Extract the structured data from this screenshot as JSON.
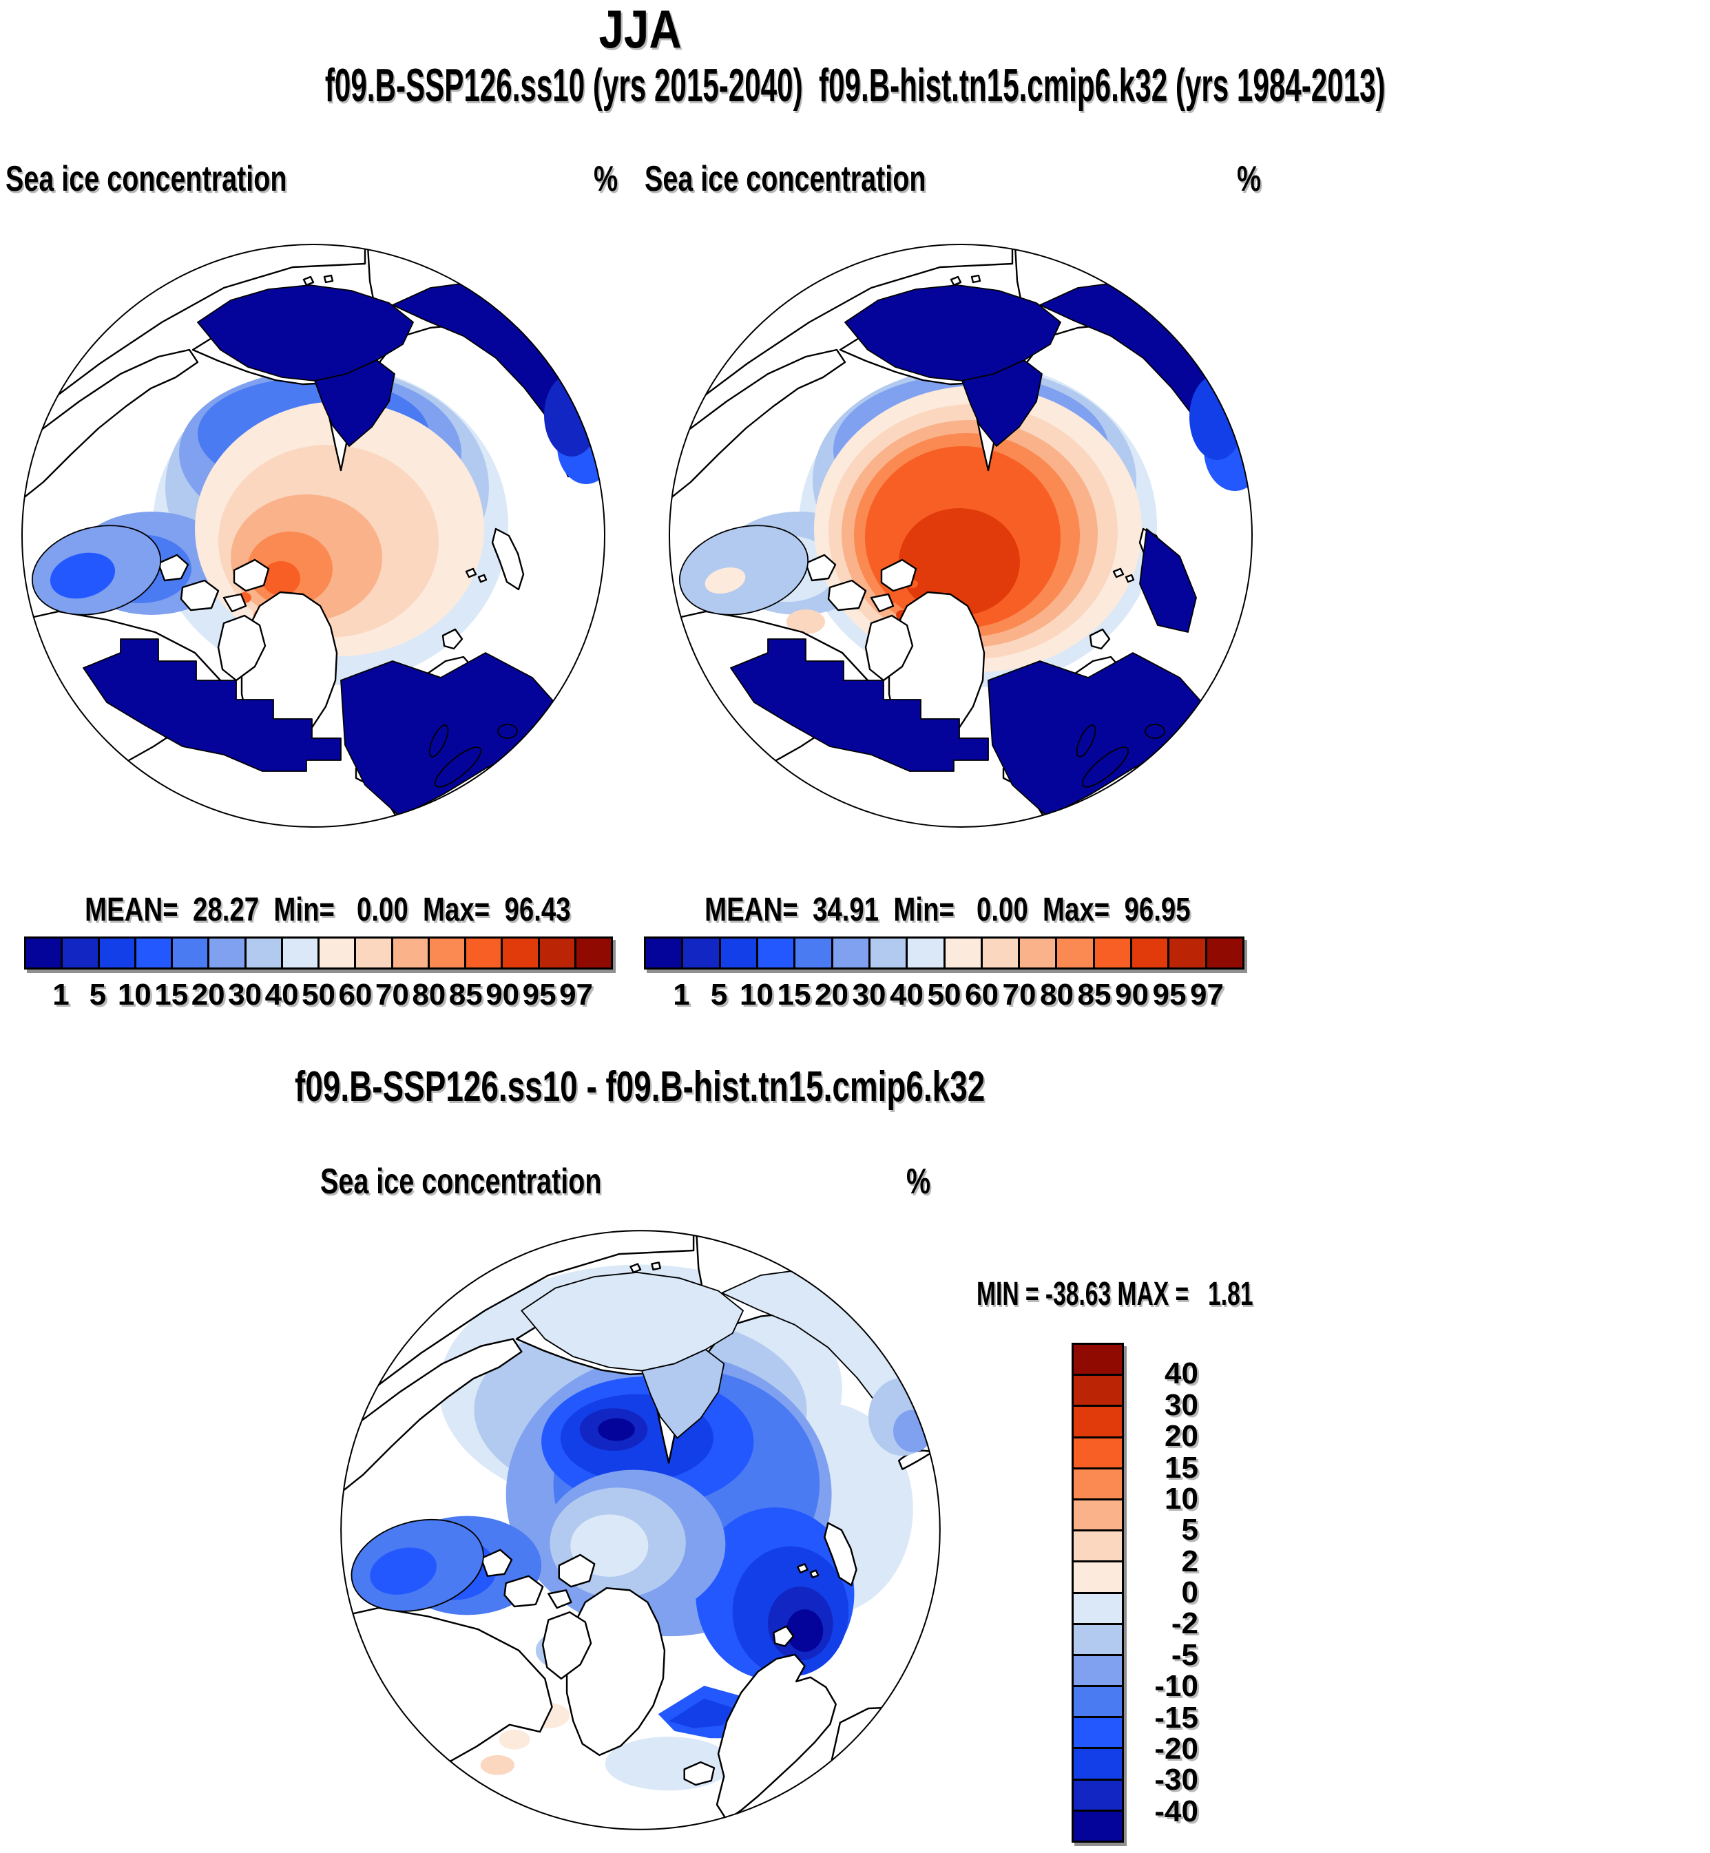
{
  "title": "JJA",
  "subtitle": "f09.B-SSP126.ss10 (yrs 2015-2040)  f09.B-hist.tn15.cmip6.k32 (yrs 1984-2013)",
  "panels": {
    "left": {
      "field_label": "Sea ice concentration",
      "units": "%",
      "stats_line": "MEAN=  28.27  Min=   0.00  Max=  96.43"
    },
    "right": {
      "field_label": "Sea ice concentration",
      "units": "%",
      "stats_line": "MEAN=  34.91  Min=   0.00  Max=  96.95"
    },
    "diff": {
      "title": "f09.B-SSP126.ss10 - f09.B-hist.tn15.cmip6.k32",
      "field_label": "Sea ice concentration",
      "units": "%",
      "minmax_line": "MIN = -38.63 MAX =   1.81"
    }
  },
  "colorbar": {
    "tick_labels": [
      "1",
      "5",
      "10",
      "15",
      "20",
      "30",
      "40",
      "50",
      "60",
      "70",
      "80",
      "85",
      "90",
      "95",
      "97"
    ],
    "colors": [
      "#04049B",
      "#1126C2",
      "#123FE8",
      "#2458FF",
      "#4B7BF2",
      "#7FA1F0",
      "#B2CAEF",
      "#DAE8F8",
      "#FCEADC",
      "#FBD7C0",
      "#FAB28B",
      "#FA8A52",
      "#F85F24",
      "#E13A0B",
      "#BC2406",
      "#900A01"
    ]
  },
  "diff_colorbar": {
    "tick_labels_top_to_bottom": [
      "40",
      "30",
      "20",
      "15",
      "10",
      "5",
      "2",
      "0",
      "-2",
      "-5",
      "-10",
      "-15",
      "-20",
      "-30",
      "-40"
    ],
    "colors_top_to_bottom": [
      "#900A01",
      "#BC2406",
      "#E13A0B",
      "#F85F24",
      "#FA8A52",
      "#FAB28B",
      "#FBD7C0",
      "#FCEADC",
      "#DAE8F8",
      "#B2CAEF",
      "#7FA1F0",
      "#4B7BF2",
      "#2458FF",
      "#123FE8",
      "#1126C2",
      "#04049B"
    ]
  },
  "chart_data": [
    {
      "type": "heatmap",
      "panel": "top-left",
      "season": "JJA",
      "title": "f09.B-SSP126.ss10 (yrs 2015-2040)",
      "variable": "Sea ice concentration",
      "units": "%",
      "stats": {
        "mean": 28.27,
        "min": 0.0,
        "max": 96.43
      },
      "contour_levels": [
        1,
        5,
        10,
        15,
        20,
        30,
        40,
        50,
        60,
        70,
        80,
        85,
        90,
        95,
        97
      ],
      "palette": [
        "#04049B",
        "#1126C2",
        "#123FE8",
        "#2458FF",
        "#4B7BF2",
        "#7FA1F0",
        "#B2CAEF",
        "#DAE8F8",
        "#FCEADC",
        "#FBD7C0",
        "#FAB28B",
        "#FA8A52",
        "#F85F24",
        "#E13A0B",
        "#BC2406",
        "#900A01"
      ],
      "legend_position": "below"
    },
    {
      "type": "heatmap",
      "panel": "top-right",
      "season": "JJA",
      "title": "f09.B-hist.tn15.cmip6.k32 (yrs 1984-2013)",
      "variable": "Sea ice concentration",
      "units": "%",
      "stats": {
        "mean": 34.91,
        "min": 0.0,
        "max": 96.95
      },
      "contour_levels": [
        1,
        5,
        10,
        15,
        20,
        30,
        40,
        50,
        60,
        70,
        80,
        85,
        90,
        95,
        97
      ],
      "palette": [
        "#04049B",
        "#1126C2",
        "#123FE8",
        "#2458FF",
        "#4B7BF2",
        "#7FA1F0",
        "#B2CAEF",
        "#DAE8F8",
        "#FCEADC",
        "#FBD7C0",
        "#FAB28B",
        "#FA8A52",
        "#F85F24",
        "#E13A0B",
        "#BC2406",
        "#900A01"
      ],
      "legend_position": "below"
    },
    {
      "type": "heatmap",
      "panel": "bottom-difference",
      "season": "JJA",
      "title": "f09.B-SSP126.ss10 - f09.B-hist.tn15.cmip6.k32",
      "variable": "Sea ice concentration",
      "units": "%",
      "stats": {
        "min": -38.63,
        "max": 1.81
      },
      "contour_levels": [
        -40,
        -30,
        -20,
        -15,
        -10,
        -5,
        -2,
        0,
        2,
        5,
        10,
        15,
        20,
        30,
        40
      ],
      "palette": [
        "#04049B",
        "#1126C2",
        "#123FE8",
        "#2458FF",
        "#4B7BF2",
        "#7FA1F0",
        "#B2CAEF",
        "#DAE8F8",
        "#FCEADC",
        "#FBD7C0",
        "#FAB28B",
        "#FA8A52",
        "#F85F24",
        "#E13A0B",
        "#BC2406",
        "#900A01"
      ],
      "legend_position": "right-vertical"
    }
  ]
}
